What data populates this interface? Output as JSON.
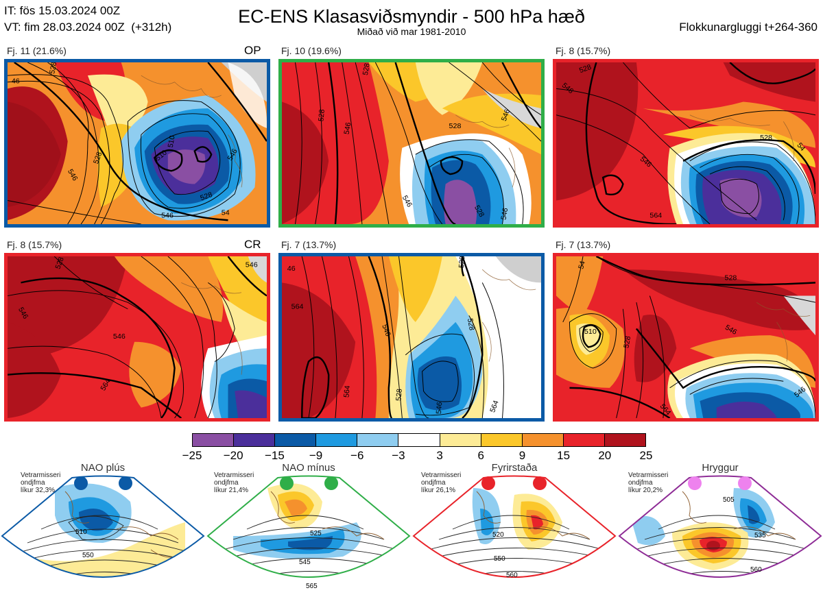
{
  "header": {
    "initial_time": "IT: fös 15.03.2024 00Z",
    "valid_time": "VT: fim 28.03.2024 00Z  (+312h)",
    "title": "EC-ENS Klasasviðsmyndir - 500 hPa hæð",
    "subtitle": "Miðað við mar 1981-2010",
    "window": "Flokkunargluggi t+264-360"
  },
  "clusters": [
    {
      "label": "Fj. 11 (21.6%)",
      "tag": "OP",
      "border": "#0b5aa6",
      "contours": [
        "46",
        "528",
        "546",
        "510",
        "528",
        "546",
        "510",
        "528",
        "546",
        "54"
      ]
    },
    {
      "label": "Fj. 10 (19.6%)",
      "tag": "",
      "border": "#2fae48",
      "contours": [
        "528",
        "546",
        "528",
        "546",
        "528",
        "546",
        "528",
        "546"
      ]
    },
    {
      "label": "Fj. 8 (15.7%)",
      "tag": "",
      "border": "#e8232a",
      "contours": [
        "528",
        "546",
        "528",
        "546",
        "564",
        "54"
      ]
    },
    {
      "label": "Fj. 8 (15.7%)",
      "tag": "CR",
      "border": "#e8232a",
      "contours": [
        "528",
        "546",
        "546",
        "546",
        "564"
      ]
    },
    {
      "label": "Fj. 7 (13.7%)",
      "tag": "",
      "border": "#0b5aa6",
      "contours": [
        "46",
        "564",
        "546",
        "528",
        "528",
        "564",
        "528",
        "546",
        "564"
      ]
    },
    {
      "label": "Fj. 7 (13.7%)",
      "tag": "",
      "border": "#e8232a",
      "contours": [
        "54",
        "528",
        "510",
        "528",
        "546",
        "564",
        "546"
      ]
    }
  ],
  "colorbar": {
    "colors": [
      "#8a4fa3",
      "#4b2f9b",
      "#0b5aa6",
      "#1f9ae0",
      "#8fcdf0",
      "#ffffff",
      "#fdeb96",
      "#fbc72a",
      "#f5912d",
      "#e8232a",
      "#b0131d"
    ],
    "ticks": [
      "−25",
      "−20",
      "−15",
      "−9",
      "−6",
      "−3",
      "3",
      "6",
      "9",
      "15",
      "20",
      "25"
    ]
  },
  "regimes": [
    {
      "name": "NAO plús",
      "note": [
        "Vetrarmisseri",
        "ondjfma",
        "líkur 32,3%"
      ],
      "color": "#0b5aa6",
      "dot": "#0b5aa6",
      "contours": [
        "510",
        "550"
      ]
    },
    {
      "name": "NAO mínus",
      "note": [
        "Vetrarmisseri",
        "ondjfma",
        "líkur 21,4%"
      ],
      "color": "#2fae48",
      "dot": "#2fae48",
      "contours": [
        "525",
        "545",
        "565"
      ]
    },
    {
      "name": "Fyrirstaða",
      "note": [
        "Vetrarmisseri",
        "ondjfma",
        "líkur 26,1%"
      ],
      "color": "#e8232a",
      "dot": "#e8232a",
      "contours": [
        "520",
        "550",
        "560"
      ]
    },
    {
      "name": "Hryggur",
      "note": [
        "Vetrarmisseri",
        "ondjfma",
        "líkur 20,2%"
      ],
      "color": "#8e2c96",
      "dot": "#ee82ee",
      "contours": [
        "505",
        "535",
        "560"
      ]
    }
  ]
}
